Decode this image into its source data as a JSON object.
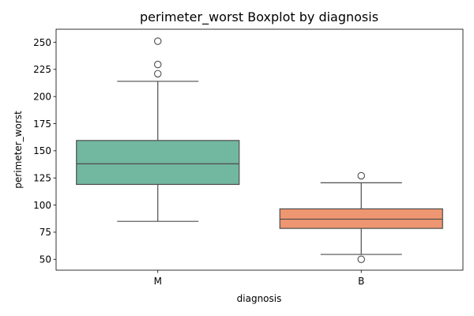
{
  "chart_data": {
    "type": "box",
    "title": "perimeter_worst Boxplot by diagnosis",
    "xlabel": "diagnosis",
    "ylabel": "perimeter_worst",
    "ylim": [
      40,
      262
    ],
    "yticks": [
      "50",
      "75",
      "100",
      "125",
      "150",
      "175",
      "200",
      "225",
      "250"
    ],
    "categories": [
      "M",
      "B"
    ],
    "colors": [
      "#72b7a0",
      "#ee9671"
    ],
    "boxes": [
      {
        "category": "M",
        "whisker_low": 85,
        "q1": 119,
        "median": 138,
        "q3": 159.5,
        "whisker_high": 214,
        "outliers": [
          221,
          229.5,
          251
        ]
      },
      {
        "category": "B",
        "whisker_low": 54.5,
        "q1": 78.5,
        "median": 87,
        "q3": 96.5,
        "whisker_high": 120.5,
        "outliers": [
          50,
          127
        ]
      }
    ],
    "grid": false,
    "legend": "none"
  }
}
